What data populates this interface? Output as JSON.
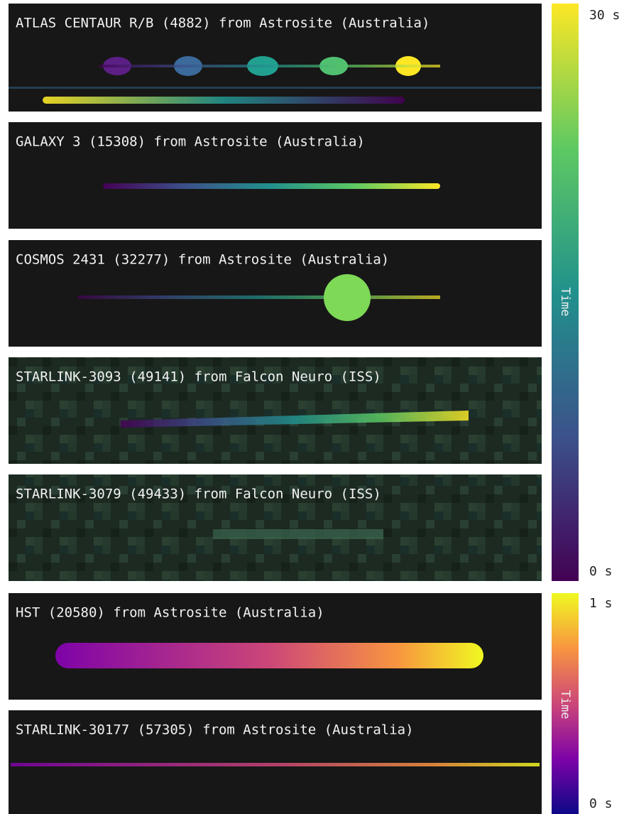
{
  "panels": [
    {
      "title": "ATLAS CENTAUR R/B (4882) from Astrosite (Australia)"
    },
    {
      "title": "GALAXY 3 (15308) from Astrosite (Australia)"
    },
    {
      "title": "COSMOS 2431 (32277) from Astrosite (Australia)"
    },
    {
      "title": "STARLINK-3093 (49141) from Falcon Neuro (ISS)"
    },
    {
      "title": "STARLINK-3079 (49433) from Falcon Neuro (ISS)"
    },
    {
      "title": "HST (20580) from Astrosite (Australia)"
    },
    {
      "title": "STARLINK-30177 (57305) from Astrosite (Australia)"
    }
  ],
  "colorbars": [
    {
      "top_label": "30 s",
      "bottom_label": "0 s",
      "label": "Time"
    },
    {
      "top_label": "1 s",
      "bottom_label": "0 s",
      "label": "Time"
    }
  ]
}
